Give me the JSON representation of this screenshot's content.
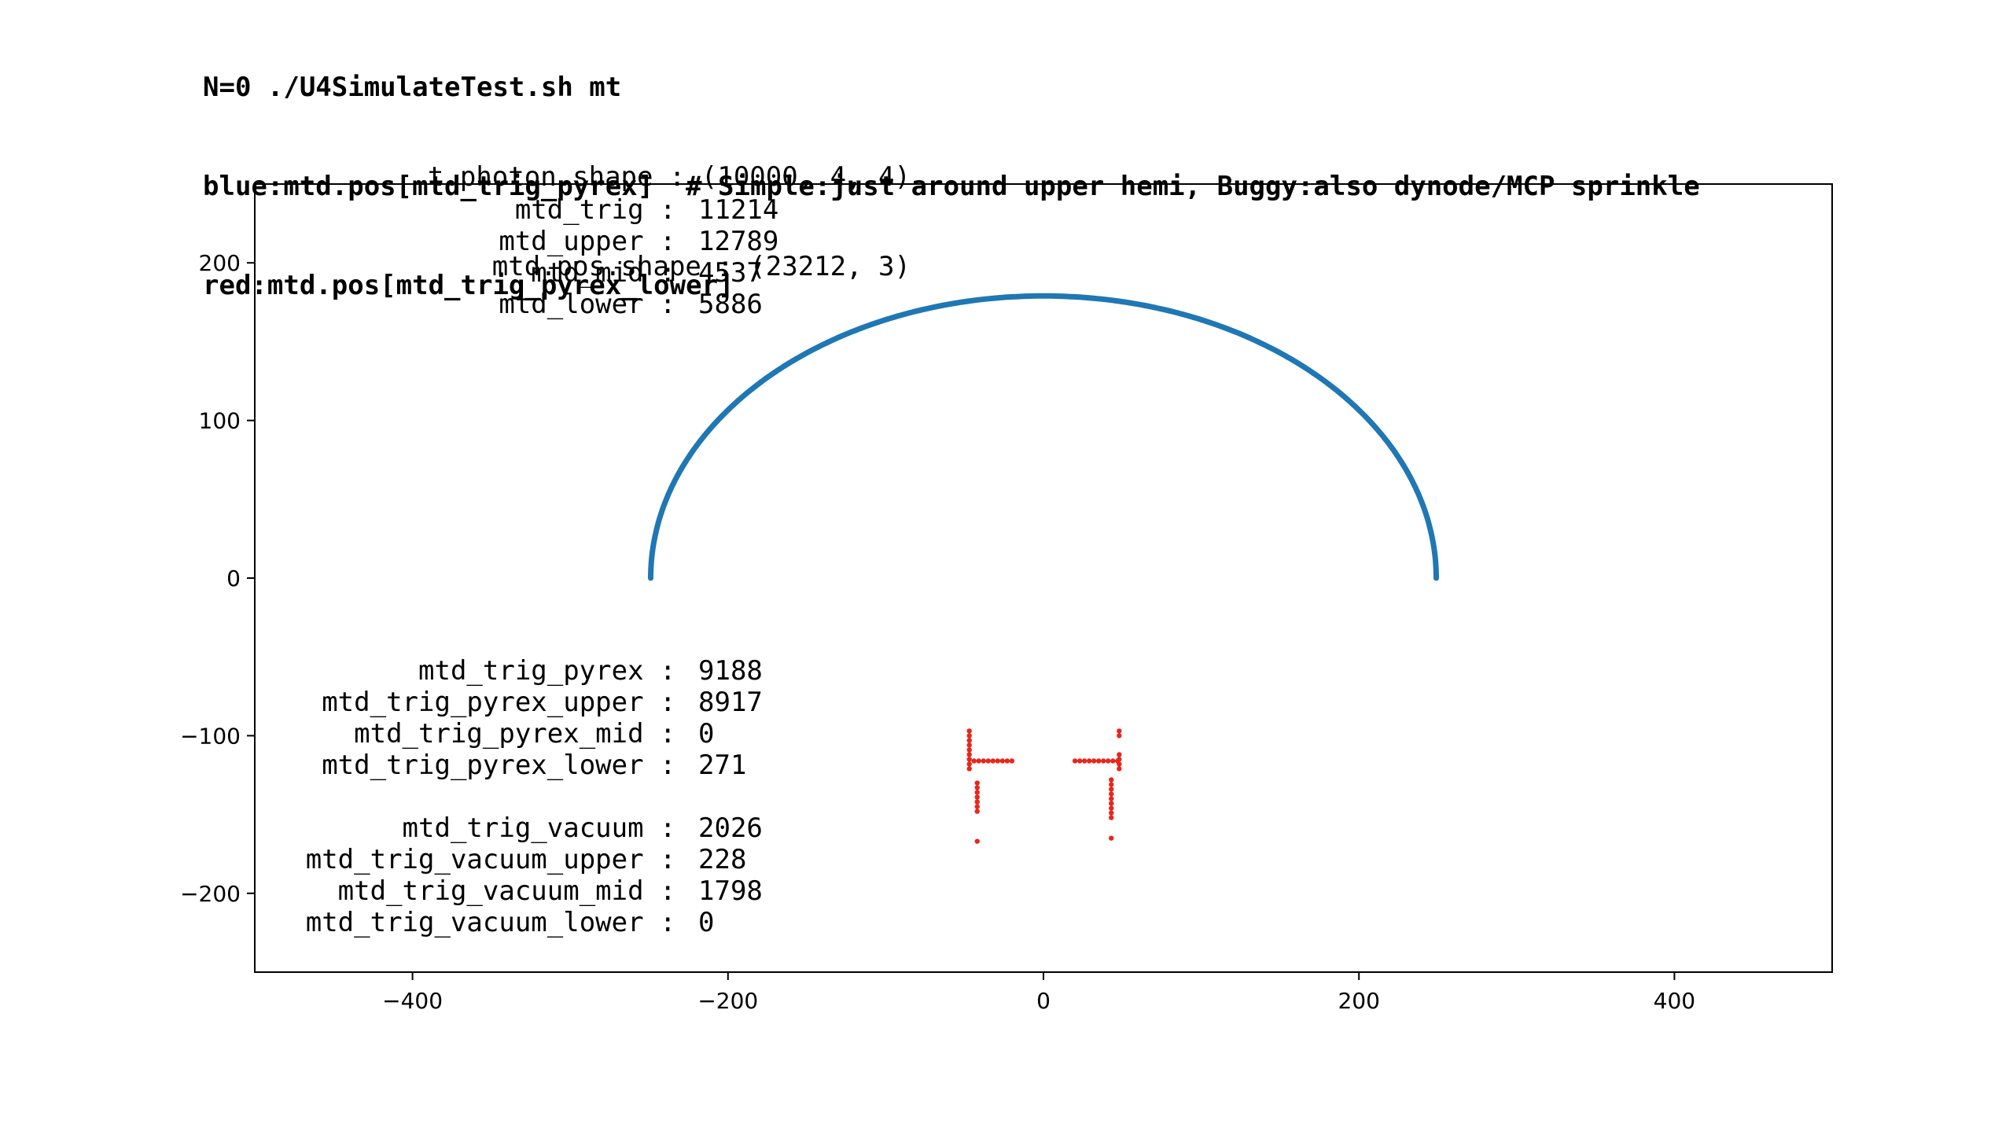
{
  "header": {
    "title_lines": [
      "N=0 ./U4SimulateTest.sh mt",
      "blue:mtd.pos[mtd_trig_pyrex]  # Simple:just around upper hemi, Buggy:also dynode/MCP sprinkle",
      "red:mtd.pos[mtd_trig_pyrex_lower]"
    ],
    "shape_lines": [
      "t.photon.shape : (10000, 4, 4)",
      "mtd.pos.shape : (23212, 3)"
    ]
  },
  "chart_data": {
    "type": "scatter",
    "title": "N=0 ./U4SimulateTest.sh mt",
    "xlabel": "",
    "ylabel": "",
    "xlim": [
      -500,
      500
    ],
    "ylim": [
      -250,
      250
    ],
    "xticks": [
      -400,
      -200,
      0,
      200,
      400
    ],
    "yticks": [
      200,
      100,
      0,
      -100,
      -200
    ],
    "xtick_labels": [
      "−400",
      "−200",
      "0",
      "200",
      "400"
    ],
    "ytick_labels": [
      "200",
      "100",
      "0",
      "−100",
      "−200"
    ],
    "grid": false,
    "series": [
      {
        "color": "#1f77b4",
        "shape": "upper half-ellipse",
        "semi_axis_x": 249,
        "semi_axis_y": 179,
        "center": [
          0,
          0
        ]
      },
      {
        "color": "#e8261c",
        "points": [
          [
            -47,
            -97
          ],
          [
            -47,
            -100
          ],
          [
            -47,
            -103
          ],
          [
            -47,
            -106
          ],
          [
            -47,
            -109
          ],
          [
            -47,
            -112
          ],
          [
            -47,
            -115
          ],
          [
            -47,
            -118
          ],
          [
            -47,
            -121
          ],
          [
            -44,
            -116
          ],
          [
            -41,
            -116
          ],
          [
            -38,
            -116
          ],
          [
            -35,
            -116
          ],
          [
            -32,
            -116
          ],
          [
            -29,
            -116
          ],
          [
            -26,
            -116
          ],
          [
            -23,
            -116
          ],
          [
            -20,
            -116
          ],
          [
            -42,
            -130
          ],
          [
            -42,
            -133
          ],
          [
            -42,
            -136
          ],
          [
            -42,
            -139
          ],
          [
            -42,
            -142
          ],
          [
            -42,
            -145
          ],
          [
            -42,
            -148
          ],
          [
            -42,
            -167
          ],
          [
            48,
            -97
          ],
          [
            48,
            -100
          ],
          [
            48,
            -112
          ],
          [
            48,
            -115
          ],
          [
            48,
            -118
          ],
          [
            48,
            -121
          ],
          [
            20,
            -116
          ],
          [
            23,
            -116
          ],
          [
            26,
            -116
          ],
          [
            29,
            -116
          ],
          [
            32,
            -116
          ],
          [
            35,
            -116
          ],
          [
            38,
            -116
          ],
          [
            41,
            -116
          ],
          [
            44,
            -116
          ],
          [
            47,
            -116
          ],
          [
            43,
            -128
          ],
          [
            43,
            -131
          ],
          [
            43,
            -134
          ],
          [
            43,
            -137
          ],
          [
            43,
            -140
          ],
          [
            43,
            -143
          ],
          [
            43,
            -146
          ],
          [
            43,
            -149
          ],
          [
            43,
            -152
          ],
          [
            43,
            -165
          ]
        ]
      }
    ],
    "annotations_upper": [
      [
        "mtd_trig",
        "11214"
      ],
      [
        "mtd_upper",
        "12789"
      ],
      [
        "mtd_mid",
        "4537"
      ],
      [
        "mtd_lower",
        "5886"
      ]
    ],
    "annotations_lower": [
      [
        "mtd_trig_pyrex",
        "9188"
      ],
      [
        "mtd_trig_pyrex_upper",
        "8917"
      ],
      [
        "mtd_trig_pyrex_mid",
        "0"
      ],
      [
        "mtd_trig_pyrex_lower",
        "271"
      ],
      [
        "",
        ""
      ],
      [
        "mtd_trig_vacuum",
        "2026"
      ],
      [
        "mtd_trig_vacuum_upper",
        "228"
      ],
      [
        "mtd_trig_vacuum_mid",
        "1798"
      ],
      [
        "mtd_trig_vacuum_lower",
        "0"
      ]
    ]
  }
}
